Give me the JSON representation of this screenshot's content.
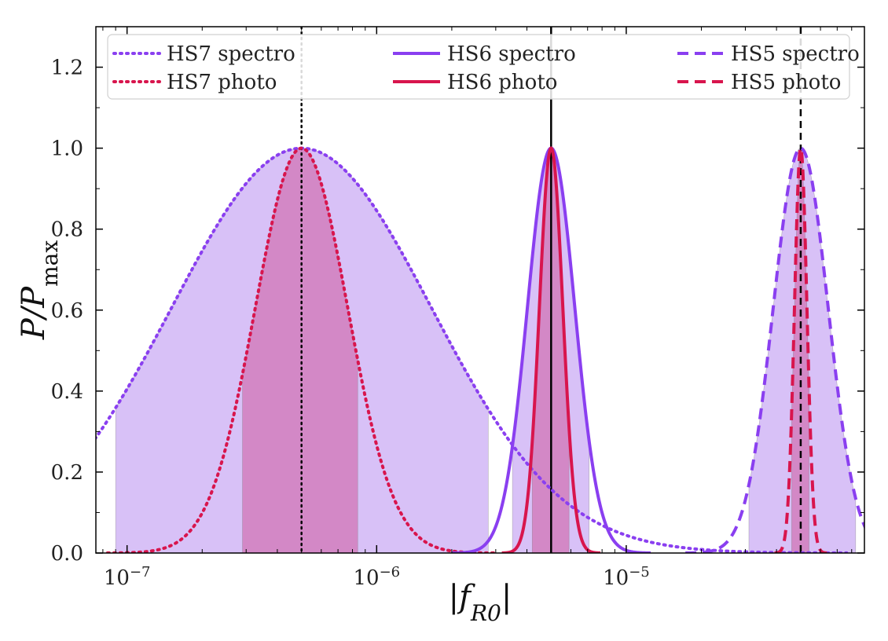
{
  "chart_data": {
    "type": "line",
    "title": "",
    "xlabel": "|f_R0|",
    "xlabel_parts": {
      "pipe_left": "|",
      "f": "f",
      "sub": "R0",
      "pipe_right": "|"
    },
    "ylabel": "P/P_max",
    "ylabel_parts": {
      "p": "P/P",
      "sub": "max"
    },
    "xscale": "log",
    "xlim": [
      7.5e-08,
      9e-05
    ],
    "ylim": [
      0.0,
      1.3
    ],
    "x_ticks": [
      {
        "value": 1e-07,
        "base": "10",
        "exp": "−7"
      },
      {
        "value": 1e-06,
        "base": "10",
        "exp": "−6"
      },
      {
        "value": 1e-05,
        "base": "10",
        "exp": "−5"
      }
    ],
    "y_ticks": [
      "0.0",
      "0.2",
      "0.4",
      "0.6",
      "0.8",
      "1.0",
      "1.2"
    ],
    "legend_placement": "top",
    "series": [
      {
        "name": "HS7 spectro",
        "color": "#8a3ff0",
        "style": "dotted",
        "peak": 5e-07,
        "sigma_dex": 0.52,
        "fill_lo": 9e-08,
        "fill_hi": 2.8e-06,
        "fill_color": "#cdb0f5"
      },
      {
        "name": "HS7 photo",
        "color": "#d8154d",
        "style": "dotted",
        "peak": 5e-07,
        "sigma_dex": 0.185,
        "fill_lo": 2.9e-07,
        "fill_hi": 8.4e-07,
        "fill_color": "#d178b8"
      },
      {
        "name": "HS6 spectro",
        "color": "#8a3ff0",
        "style": "solid",
        "peak": 5e-06,
        "sigma_dex": 0.095,
        "fill_lo": 3.5e-06,
        "fill_hi": 7.1e-06,
        "fill_color": "#cdb0f5"
      },
      {
        "name": "HS6 photo",
        "color": "#d8154d",
        "style": "solid",
        "peak": 5e-06,
        "sigma_dex": 0.047,
        "fill_lo": 4.2e-06,
        "fill_hi": 5.9e-06,
        "fill_color": "#d178b8"
      },
      {
        "name": "HS5 spectro",
        "color": "#8a3ff0",
        "style": "dashed",
        "peak": 5e-05,
        "sigma_dex": 0.11,
        "fill_lo": 3.1e-05,
        "fill_hi": 8.3e-05,
        "fill_color": "#cdb0f5"
      },
      {
        "name": "HS5 photo",
        "color": "#d8154d",
        "style": "dashed",
        "peak": 5e-05,
        "sigma_dex": 0.025,
        "fill_lo": 4.6e-05,
        "fill_hi": 5.4e-05,
        "fill_color": "#d178b8"
      }
    ],
    "reference_lines": [
      {
        "x": 5e-07,
        "style": "dotted",
        "color": "#000000"
      },
      {
        "x": 5e-06,
        "style": "solid",
        "color": "#000000"
      },
      {
        "x": 5e-05,
        "style": "dashed",
        "color": "#000000"
      }
    ]
  }
}
